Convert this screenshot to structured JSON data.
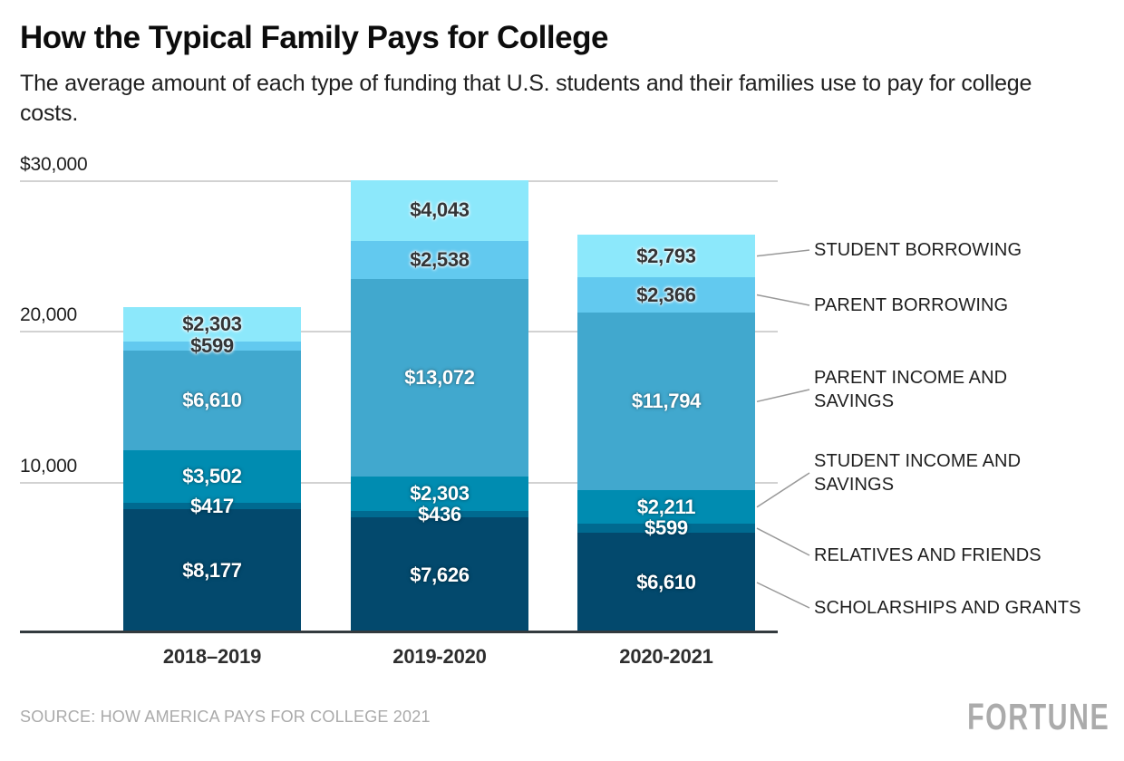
{
  "header": {
    "title": "How the Typical Family Pays for College",
    "subtitle": "The average amount of each type of funding that U.S. students and their families use to pay for college costs."
  },
  "chart_data": {
    "type": "bar",
    "stacked": true,
    "title": "How the Typical Family Pays for College",
    "categories": [
      "2018–2019",
      "2019-2020",
      "2020-2021"
    ],
    "series": [
      {
        "name": "SCHOLARSHIPS AND GRANTS",
        "color": "#03496d",
        "text_style": "light",
        "values": [
          8177,
          7626,
          6610
        ],
        "labels": [
          "$8,177",
          "$7,626",
          "$6,610"
        ]
      },
      {
        "name": "RELATIVES AND FRIENDS",
        "color": "#006a90",
        "text_style": "light",
        "values": [
          417,
          436,
          599
        ],
        "labels": [
          "$417",
          "$436",
          "$599"
        ]
      },
      {
        "name": "STUDENT INCOME AND SAVINGS",
        "color": "#008cb1",
        "text_style": "light",
        "values": [
          3502,
          2303,
          2211
        ],
        "labels": [
          "$3,502",
          "$2,303",
          "$2,211"
        ]
      },
      {
        "name": "PARENT INCOME AND SAVINGS",
        "color": "#41a8ce",
        "text_style": "light",
        "values": [
          6610,
          13072,
          11794
        ],
        "labels": [
          "$6,610",
          "$13,072",
          "$11,794"
        ]
      },
      {
        "name": "PARENT BORROWING",
        "color": "#62c9ef",
        "text_style": "dark",
        "values": [
          599,
          2538,
          2366
        ],
        "labels": [
          "$599",
          "$2,538",
          "$2,366"
        ]
      },
      {
        "name": "STUDENT BORROWING",
        "color": "#8ce8fb",
        "text_style": "dark",
        "values": [
          2303,
          4043,
          2793
        ],
        "labels": [
          "$2,303",
          "$4,043",
          "$2,793"
        ]
      }
    ],
    "totals": [
      21608,
      30018,
      26373
    ],
    "y_ticks": [
      {
        "label": "$30,000",
        "value": 30000
      },
      {
        "label": "20,000",
        "value": 20000
      },
      {
        "label": "10,000",
        "value": 10000
      }
    ],
    "ylim": [
      0,
      30000
    ],
    "grid": true,
    "legend_position": "right"
  },
  "palette": {
    "axis_line": "#333a3e",
    "gridline": "#d2d2d2",
    "connector_line": "#999999",
    "value_label_dark": "#333537",
    "value_label_light": "#ffffff",
    "source_gray": "#aaaaaa",
    "brand_gray": "#ababab"
  },
  "footer": {
    "source": "SOURCE: HOW AMERICA PAYS FOR COLLEGE 2021",
    "brand": "FORTUNE"
  }
}
